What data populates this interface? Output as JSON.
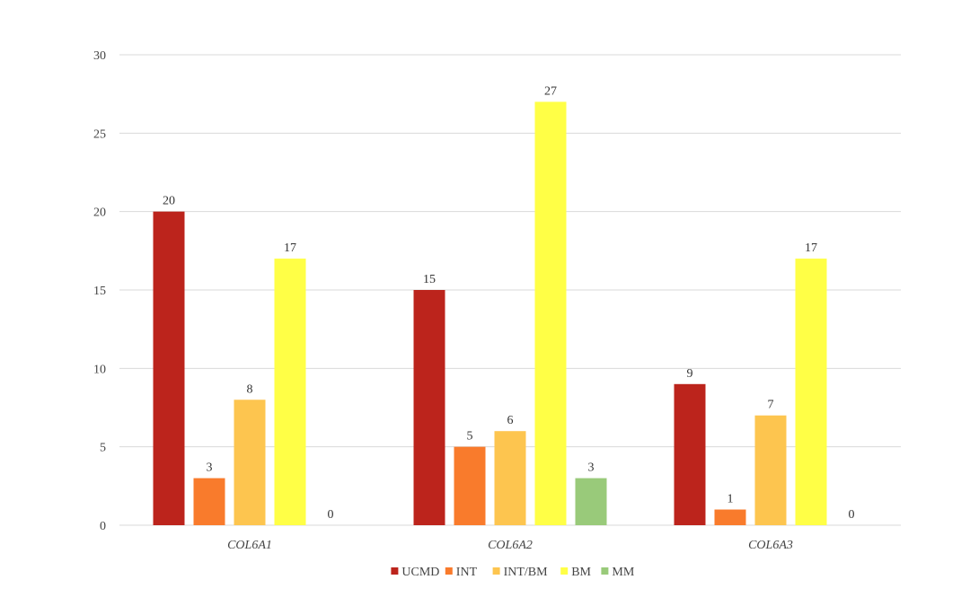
{
  "chart_data": {
    "type": "bar",
    "categories": [
      "COL6A1",
      "COL6A2",
      "COL6A3"
    ],
    "series": [
      {
        "name": "UCMD",
        "color": "#bc241c",
        "values": [
          20,
          15,
          9
        ]
      },
      {
        "name": "INT",
        "color": "#f97b2c",
        "values": [
          3,
          5,
          1
        ]
      },
      {
        "name": "INT/BM",
        "color": "#fdc54f",
        "values": [
          8,
          6,
          7
        ]
      },
      {
        "name": "BM",
        "color": "#ffff46",
        "values": [
          17,
          27,
          17
        ]
      },
      {
        "name": "MM",
        "color": "#99ca7a",
        "values": [
          0,
          3,
          0
        ]
      }
    ],
    "ylim": [
      0,
      30
    ],
    "yticks": [
      0,
      5,
      10,
      15,
      20,
      25,
      30
    ],
    "grid": true,
    "legend_position": "bottom"
  }
}
